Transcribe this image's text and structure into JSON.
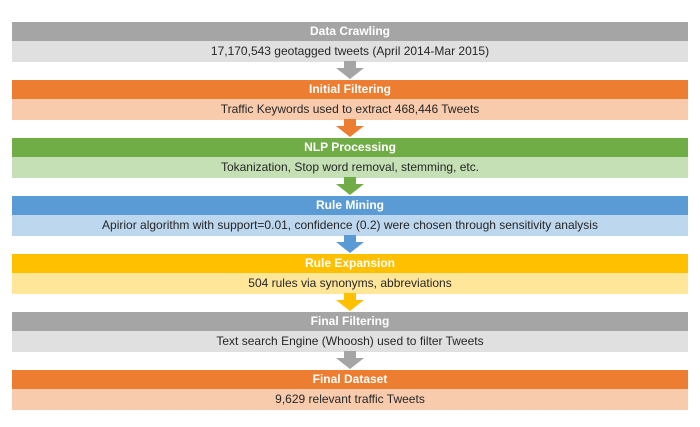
{
  "stages": [
    {
      "title": "Data Crawling",
      "detail": "17,170,543 geotagged tweets (April 2014-Mar 2015)",
      "header_color": "#a5a5a5",
      "detail_color": "#e0e0e0",
      "arrow_color": "#a5a5a5"
    },
    {
      "title": "Initial Filtering",
      "detail": "Traffic Keywords used to extract 468,446 Tweets",
      "header_color": "#ed7d31",
      "detail_color": "#f8cbad",
      "arrow_color": "#ed7d31"
    },
    {
      "title": "NLP Processing",
      "detail": "Tokanization, Stop word removal, stemming, etc.",
      "header_color": "#70ad47",
      "detail_color": "#c5e0b4",
      "arrow_color": "#70ad47"
    },
    {
      "title": "Rule Mining",
      "detail": "Apirior algorithm with support=0.01, confidence (0.2) were chosen through sensitivity analysis",
      "header_color": "#5b9bd5",
      "detail_color": "#bdd7ee",
      "arrow_color": "#5b9bd5"
    },
    {
      "title": "Rule Expansion",
      "detail": "504 rules via synonyms, abbreviations",
      "header_color": "#ffc000",
      "detail_color": "#ffe699",
      "arrow_color": "#ffc000"
    },
    {
      "title": "Final Filtering",
      "detail": "Text search Engine (Whoosh) used to filter Tweets",
      "header_color": "#a5a5a5",
      "detail_color": "#e0e0e0",
      "arrow_color": "#a5a5a5"
    },
    {
      "title": "Final Dataset",
      "detail": "9,629 relevant traffic Tweets",
      "header_color": "#ed7d31",
      "detail_color": "#f8cbad"
    }
  ]
}
